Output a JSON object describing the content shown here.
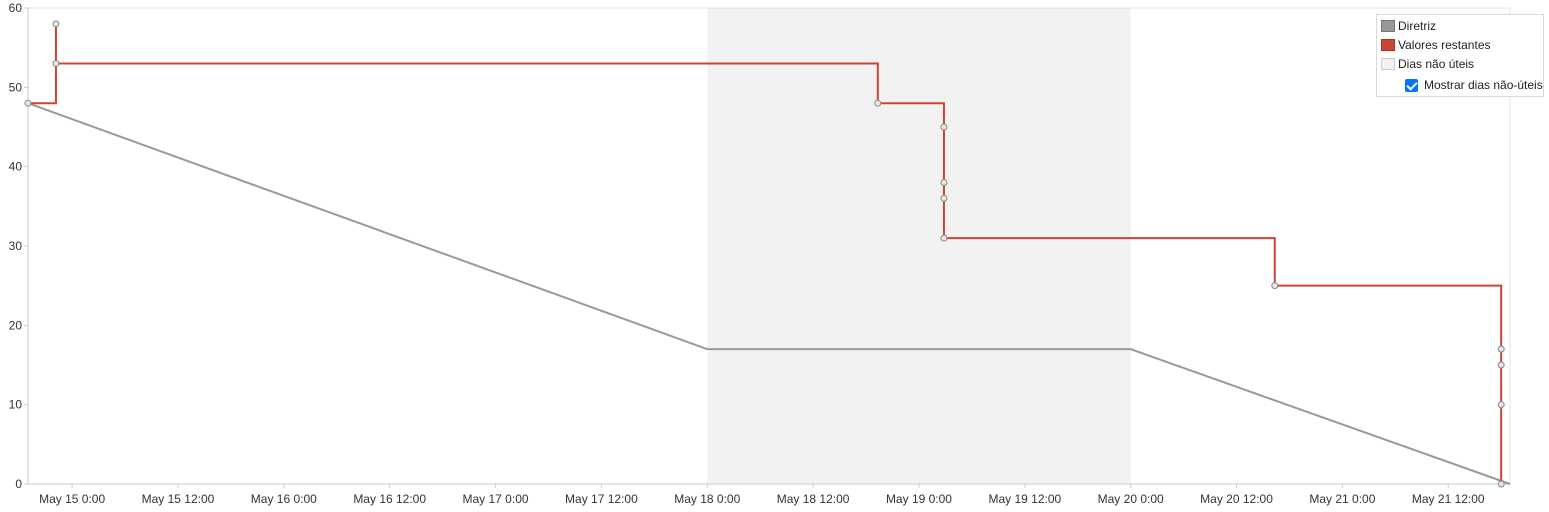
{
  "chart_data": {
    "type": "line",
    "title": "",
    "xlabel": "",
    "ylabel": "",
    "ylim": [
      0,
      60
    ],
    "y_ticks": [
      0,
      10,
      20,
      30,
      40,
      50,
      60
    ],
    "x_range": [
      "2023-05-14 19:00",
      "2023-05-21 19:00"
    ],
    "x_ticks": [
      {
        "t": "2023-05-15 00:00",
        "label": "May 15 0:00"
      },
      {
        "t": "2023-05-15 12:00",
        "label": "May 15 12:00"
      },
      {
        "t": "2023-05-16 00:00",
        "label": "May 16 0:00"
      },
      {
        "t": "2023-05-16 12:00",
        "label": "May 16 12:00"
      },
      {
        "t": "2023-05-17 00:00",
        "label": "May 17 0:00"
      },
      {
        "t": "2023-05-17 12:00",
        "label": "May 17 12:00"
      },
      {
        "t": "2023-05-18 00:00",
        "label": "May 18 0:00"
      },
      {
        "t": "2023-05-18 12:00",
        "label": "May 18 12:00"
      },
      {
        "t": "2023-05-19 00:00",
        "label": "May 19 0:00"
      },
      {
        "t": "2023-05-19 12:00",
        "label": "May 19 12:00"
      },
      {
        "t": "2023-05-20 00:00",
        "label": "May 20 0:00"
      },
      {
        "t": "2023-05-20 12:00",
        "label": "May 20 12:00"
      },
      {
        "t": "2023-05-21 00:00",
        "label": "May 21 0:00"
      },
      {
        "t": "2023-05-21 12:00",
        "label": "May 21 12:00"
      }
    ],
    "non_working_days": [
      {
        "start": "2023-05-18 00:00",
        "end": "2023-05-20 00:00"
      }
    ],
    "series": [
      {
        "name": "Diretriz",
        "color": "#999999",
        "style": "line",
        "points": [
          {
            "t": "2023-05-14 19:00",
            "y": 48
          },
          {
            "t": "2023-05-18 00:00",
            "y": 17
          },
          {
            "t": "2023-05-20 00:00",
            "y": 17
          },
          {
            "t": "2023-05-21 19:00",
            "y": 0
          }
        ]
      },
      {
        "name": "Valores restantes",
        "color": "#cc4433",
        "style": "step",
        "points": [
          {
            "t": "2023-05-14 19:00",
            "y": 48
          },
          {
            "t": "2023-05-14 22:10",
            "y": 58
          },
          {
            "t": "2023-05-14 22:10",
            "y": 53
          },
          {
            "t": "2023-05-18 19:20",
            "y": 48
          },
          {
            "t": "2023-05-19 02:50",
            "y": 45
          },
          {
            "t": "2023-05-19 02:50",
            "y": 38
          },
          {
            "t": "2023-05-19 02:50",
            "y": 36
          },
          {
            "t": "2023-05-19 02:50",
            "y": 31
          },
          {
            "t": "2023-05-20 16:20",
            "y": 25
          },
          {
            "t": "2023-05-21 18:00",
            "y": 17
          },
          {
            "t": "2023-05-21 18:00",
            "y": 15
          },
          {
            "t": "2023-05-21 18:00",
            "y": 10
          },
          {
            "t": "2023-05-21 18:00",
            "y": 0
          }
        ]
      }
    ],
    "legend": {
      "position": "top-right",
      "items": [
        {
          "label": "Diretriz",
          "color": "#999999"
        },
        {
          "label": "Valores restantes",
          "color": "#cc4433"
        },
        {
          "label": "Dias não úteis",
          "color": "#f2f2f2"
        }
      ],
      "checkbox": {
        "label": "Mostrar dias não-úteis",
        "checked": true
      }
    },
    "grid": false
  }
}
